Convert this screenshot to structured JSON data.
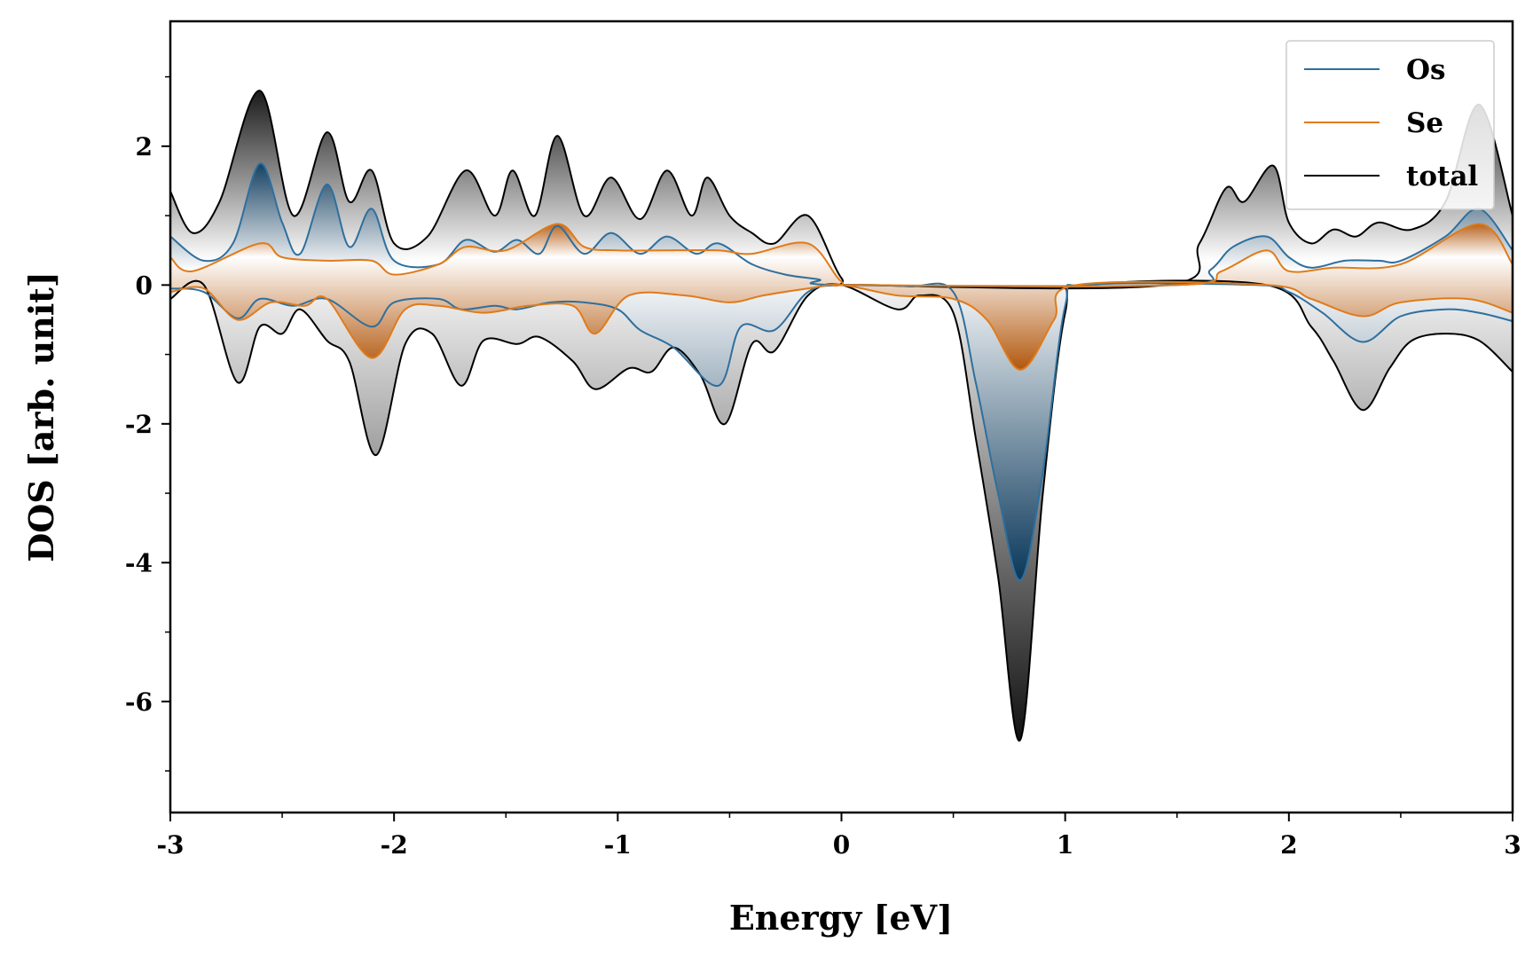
{
  "chart_data": {
    "type": "area",
    "title": "",
    "xlabel": "Energy [eV]",
    "ylabel": "DOS [arb. unit]",
    "xlim": [
      -3,
      3
    ],
    "ylim": [
      -7.6,
      3.8
    ],
    "xticks": [
      -3,
      -2,
      -1,
      0,
      1,
      2,
      3
    ],
    "xtick_labels": [
      "-3",
      "-2",
      "-1",
      "0",
      "1",
      "2",
      "3"
    ],
    "yticks": [
      -6,
      -4,
      -2,
      0,
      2
    ],
    "ytick_labels": [
      "-6",
      "-4",
      "-2",
      "0",
      "2"
    ],
    "legend_position": "top-right",
    "series": [
      {
        "name": "Os",
        "color": "#2e6f9e",
        "fill_color": "#0d3a5c",
        "spin_up": [
          [
            -3.0,
            0.7
          ],
          [
            -2.85,
            0.35
          ],
          [
            -2.72,
            0.6
          ],
          [
            -2.6,
            1.75
          ],
          [
            -2.5,
            0.9
          ],
          [
            -2.42,
            0.45
          ],
          [
            -2.3,
            1.45
          ],
          [
            -2.2,
            0.55
          ],
          [
            -2.1,
            1.1
          ],
          [
            -2.0,
            0.35
          ],
          [
            -1.8,
            0.3
          ],
          [
            -1.68,
            0.65
          ],
          [
            -1.55,
            0.48
          ],
          [
            -1.45,
            0.65
          ],
          [
            -1.35,
            0.45
          ],
          [
            -1.27,
            0.85
          ],
          [
            -1.15,
            0.45
          ],
          [
            -1.03,
            0.75
          ],
          [
            -0.9,
            0.45
          ],
          [
            -0.78,
            0.7
          ],
          [
            -0.65,
            0.45
          ],
          [
            -0.55,
            0.6
          ],
          [
            -0.4,
            0.3
          ],
          [
            -0.25,
            0.15
          ],
          [
            -0.1,
            0.08
          ],
          [
            0.0,
            0.0
          ],
          [
            1.5,
            0.0
          ],
          [
            1.65,
            0.22
          ],
          [
            1.75,
            0.55
          ],
          [
            1.9,
            0.7
          ],
          [
            2.0,
            0.4
          ],
          [
            2.1,
            0.25
          ],
          [
            2.25,
            0.35
          ],
          [
            2.4,
            0.35
          ],
          [
            2.5,
            0.35
          ],
          [
            2.7,
            0.7
          ],
          [
            2.85,
            1.1
          ],
          [
            3.0,
            0.5
          ]
        ],
        "spin_down": [
          [
            -3.0,
            -0.05
          ],
          [
            -2.85,
            -0.1
          ],
          [
            -2.7,
            -0.48
          ],
          [
            -2.6,
            -0.2
          ],
          [
            -2.45,
            -0.3
          ],
          [
            -2.3,
            -0.2
          ],
          [
            -2.1,
            -0.6
          ],
          [
            -2.0,
            -0.25
          ],
          [
            -1.8,
            -0.2
          ],
          [
            -1.7,
            -0.35
          ],
          [
            -1.55,
            -0.3
          ],
          [
            -1.45,
            -0.35
          ],
          [
            -1.3,
            -0.25
          ],
          [
            -1.15,
            -0.25
          ],
          [
            -1.0,
            -0.35
          ],
          [
            -0.9,
            -0.65
          ],
          [
            -0.75,
            -0.9
          ],
          [
            -0.55,
            -1.45
          ],
          [
            -0.45,
            -0.6
          ],
          [
            -0.3,
            -0.65
          ],
          [
            -0.15,
            -0.1
          ],
          [
            0.0,
            0.0
          ],
          [
            0.3,
            -0.02
          ],
          [
            0.5,
            -0.1
          ],
          [
            0.6,
            -1.4
          ],
          [
            0.7,
            -3.0
          ],
          [
            0.8,
            -4.25
          ],
          [
            0.9,
            -2.7
          ],
          [
            1.0,
            -0.3
          ],
          [
            1.1,
            0.0
          ],
          [
            1.85,
            0.0
          ],
          [
            2.0,
            -0.1
          ],
          [
            2.15,
            -0.4
          ],
          [
            2.33,
            -0.82
          ],
          [
            2.5,
            -0.45
          ],
          [
            2.7,
            -0.35
          ],
          [
            2.85,
            -0.4
          ],
          [
            3.0,
            -0.52
          ]
        ]
      },
      {
        "name": "Se",
        "color": "#e07b1a",
        "fill_color": "#b35a10",
        "spin_up": [
          [
            -3.0,
            0.4
          ],
          [
            -2.9,
            0.2
          ],
          [
            -2.6,
            0.6
          ],
          [
            -2.5,
            0.4
          ],
          [
            -2.3,
            0.35
          ],
          [
            -2.1,
            0.35
          ],
          [
            -2.0,
            0.15
          ],
          [
            -1.8,
            0.3
          ],
          [
            -1.68,
            0.55
          ],
          [
            -1.5,
            0.5
          ],
          [
            -1.27,
            0.88
          ],
          [
            -1.15,
            0.55
          ],
          [
            -1.0,
            0.5
          ],
          [
            -0.8,
            0.5
          ],
          [
            -0.55,
            0.5
          ],
          [
            -0.4,
            0.45
          ],
          [
            -0.15,
            0.6
          ],
          [
            0.0,
            0.05
          ],
          [
            0.1,
            0.0
          ],
          [
            1.5,
            0.0
          ],
          [
            1.7,
            0.2
          ],
          [
            1.9,
            0.5
          ],
          [
            2.0,
            0.2
          ],
          [
            2.2,
            0.25
          ],
          [
            2.5,
            0.3
          ],
          [
            2.85,
            0.88
          ],
          [
            3.0,
            0.3
          ]
        ],
        "spin_down": [
          [
            -3.0,
            -0.1
          ],
          [
            -2.85,
            -0.05
          ],
          [
            -2.7,
            -0.5
          ],
          [
            -2.55,
            -0.25
          ],
          [
            -2.4,
            -0.3
          ],
          [
            -2.3,
            -0.2
          ],
          [
            -2.1,
            -1.05
          ],
          [
            -1.95,
            -0.35
          ],
          [
            -1.8,
            -0.3
          ],
          [
            -1.6,
            -0.4
          ],
          [
            -1.4,
            -0.3
          ],
          [
            -1.2,
            -0.3
          ],
          [
            -1.1,
            -0.7
          ],
          [
            -0.95,
            -0.15
          ],
          [
            -0.7,
            -0.15
          ],
          [
            -0.5,
            -0.25
          ],
          [
            -0.35,
            -0.15
          ],
          [
            -0.15,
            -0.05
          ],
          [
            0.0,
            0.0
          ],
          [
            0.25,
            -0.15
          ],
          [
            0.5,
            -0.2
          ],
          [
            0.65,
            -0.5
          ],
          [
            0.8,
            -1.22
          ],
          [
            0.95,
            -0.5
          ],
          [
            1.05,
            0.0
          ],
          [
            1.9,
            0.0
          ],
          [
            2.1,
            -0.2
          ],
          [
            2.33,
            -0.45
          ],
          [
            2.5,
            -0.25
          ],
          [
            2.8,
            -0.2
          ],
          [
            3.0,
            -0.4
          ]
        ]
      },
      {
        "name": "total",
        "color": "#000000",
        "fill_color": "#111111",
        "spin_up": [
          [
            -3.0,
            1.35
          ],
          [
            -2.9,
            0.75
          ],
          [
            -2.78,
            1.2
          ],
          [
            -2.6,
            2.8
          ],
          [
            -2.45,
            1.0
          ],
          [
            -2.3,
            2.2
          ],
          [
            -2.2,
            1.2
          ],
          [
            -2.1,
            1.65
          ],
          [
            -2.0,
            0.6
          ],
          [
            -1.85,
            0.7
          ],
          [
            -1.68,
            1.65
          ],
          [
            -1.55,
            1.0
          ],
          [
            -1.47,
            1.65
          ],
          [
            -1.37,
            1.0
          ],
          [
            -1.27,
            2.15
          ],
          [
            -1.15,
            1.0
          ],
          [
            -1.03,
            1.55
          ],
          [
            -0.9,
            0.95
          ],
          [
            -0.78,
            1.65
          ],
          [
            -0.67,
            1.0
          ],
          [
            -0.6,
            1.55
          ],
          [
            -0.5,
            1.0
          ],
          [
            -0.4,
            0.75
          ],
          [
            -0.3,
            0.6
          ],
          [
            -0.15,
            1.0
          ],
          [
            0.0,
            0.1
          ],
          [
            0.1,
            0.0
          ],
          [
            1.45,
            0.0
          ],
          [
            1.6,
            0.6
          ],
          [
            1.72,
            1.4
          ],
          [
            1.8,
            1.2
          ],
          [
            1.93,
            1.72
          ],
          [
            2.0,
            0.9
          ],
          [
            2.1,
            0.6
          ],
          [
            2.2,
            0.8
          ],
          [
            2.3,
            0.7
          ],
          [
            2.4,
            0.9
          ],
          [
            2.55,
            0.8
          ],
          [
            2.7,
            1.2
          ],
          [
            2.85,
            2.6
          ],
          [
            3.0,
            1.0
          ]
        ],
        "spin_down": [
          [
            -3.0,
            -0.2
          ],
          [
            -2.85,
            0.0
          ],
          [
            -2.7,
            -1.4
          ],
          [
            -2.6,
            -0.6
          ],
          [
            -2.5,
            -0.7
          ],
          [
            -2.42,
            -0.35
          ],
          [
            -2.3,
            -0.8
          ],
          [
            -2.2,
            -1.1
          ],
          [
            -2.08,
            -2.45
          ],
          [
            -1.95,
            -0.85
          ],
          [
            -1.83,
            -0.7
          ],
          [
            -1.7,
            -1.45
          ],
          [
            -1.6,
            -0.8
          ],
          [
            -1.45,
            -0.85
          ],
          [
            -1.35,
            -0.75
          ],
          [
            -1.2,
            -1.1
          ],
          [
            -1.1,
            -1.5
          ],
          [
            -0.95,
            -1.2
          ],
          [
            -0.85,
            -1.25
          ],
          [
            -0.75,
            -0.9
          ],
          [
            -0.63,
            -1.3
          ],
          [
            -0.52,
            -2.0
          ],
          [
            -0.4,
            -0.85
          ],
          [
            -0.3,
            -0.95
          ],
          [
            -0.15,
            -0.15
          ],
          [
            0.0,
            0.0
          ],
          [
            0.25,
            -0.35
          ],
          [
            0.35,
            -0.15
          ],
          [
            0.5,
            -0.4
          ],
          [
            0.6,
            -2.2
          ],
          [
            0.7,
            -4.2
          ],
          [
            0.8,
            -6.55
          ],
          [
            0.9,
            -3.0
          ],
          [
            1.0,
            -0.4
          ],
          [
            1.1,
            0.0
          ],
          [
            1.9,
            0.0
          ],
          [
            2.1,
            -0.6
          ],
          [
            2.2,
            -1.1
          ],
          [
            2.33,
            -1.8
          ],
          [
            2.45,
            -1.2
          ],
          [
            2.55,
            -0.8
          ],
          [
            2.7,
            -0.7
          ],
          [
            2.85,
            -0.8
          ],
          [
            3.0,
            -1.25
          ]
        ]
      }
    ]
  }
}
